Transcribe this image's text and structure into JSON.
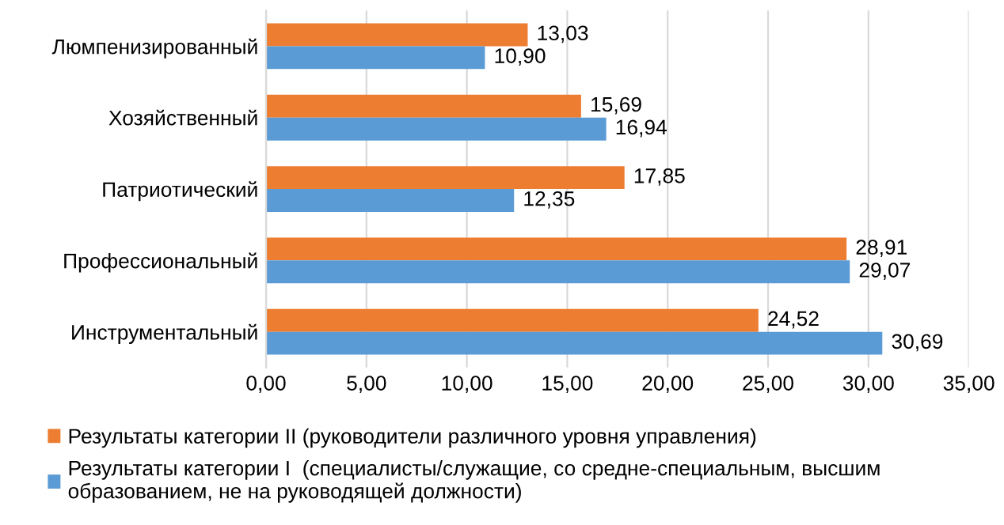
{
  "chart_data": {
    "type": "bar",
    "orientation": "horizontal",
    "categories": [
      "Люмпенизированный",
      "Хозяйственный",
      "Патриотический",
      "Профессиональный",
      "Инструментальный"
    ],
    "series": [
      {
        "name": "Результаты категории II (руководители различного уровня управления)",
        "color": "#ed7d31",
        "values": [
          13.03,
          15.69,
          17.85,
          28.91,
          24.52
        ],
        "value_labels": [
          "13,03",
          "15,69",
          "17,85",
          "28,91",
          "24,52"
        ]
      },
      {
        "name": "Результаты категории I  (специалисты/служащие, со средне-специальным, высшим\nобразованием, не на руководящей должности)",
        "color": "#5b9bd5",
        "values": [
          10.9,
          16.94,
          12.35,
          29.07,
          30.69
        ],
        "value_labels": [
          "10,90",
          "16,94",
          "12,35",
          "29,07",
          "30,69"
        ]
      }
    ],
    "xlim": [
      0,
      35
    ],
    "xticks": [
      {
        "value": 0,
        "label": "0,00"
      },
      {
        "value": 5,
        "label": "5,00"
      },
      {
        "value": 10,
        "label": "10,00"
      },
      {
        "value": 15,
        "label": "15,00"
      },
      {
        "value": 20,
        "label": "20,00"
      },
      {
        "value": 25,
        "label": "25,00"
      },
      {
        "value": 30,
        "label": "30,00"
      },
      {
        "value": 35,
        "label": "35,00"
      }
    ],
    "grid": "x",
    "legend": "bottom"
  }
}
